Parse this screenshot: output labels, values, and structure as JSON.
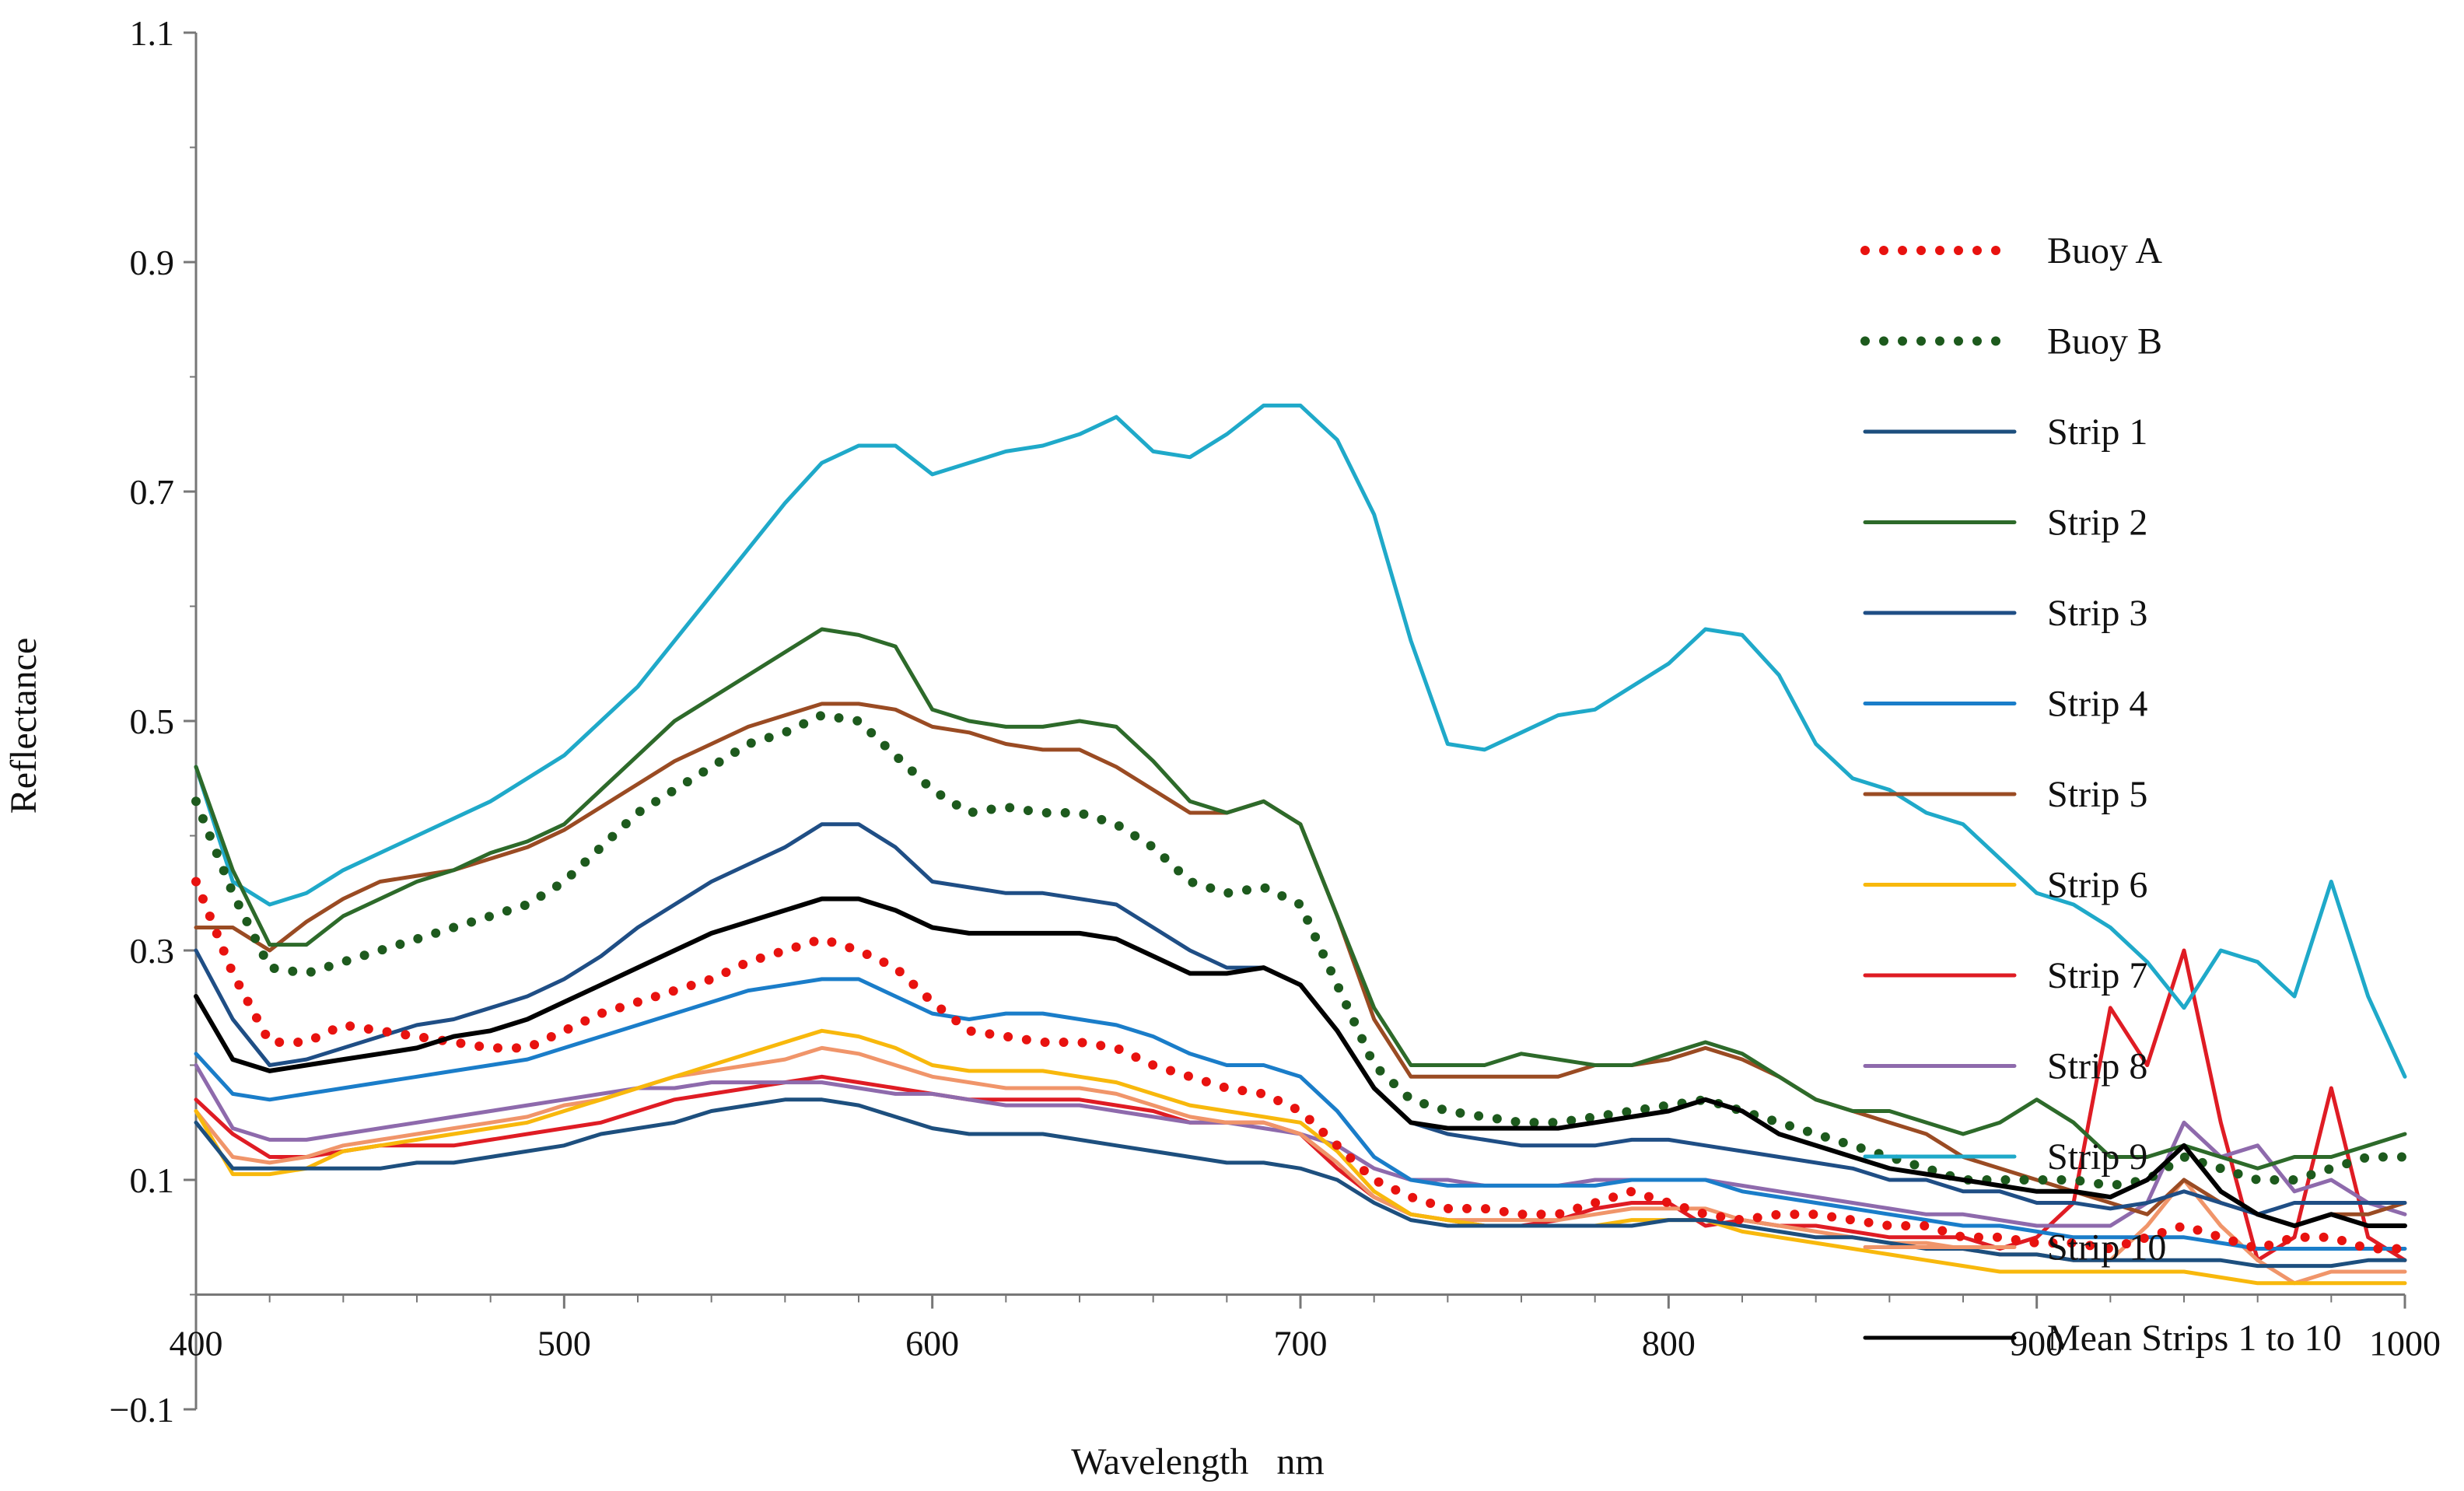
{
  "chart_data": {
    "type": "line",
    "title": "",
    "xlabel": "Wavelength   nm",
    "ylabel": "Reflectance",
    "xlim": [
      400,
      1000
    ],
    "ylim": [
      -0.1,
      1.1
    ],
    "x_axis_crosses_y": 0,
    "grid": false,
    "legend_position": "right",
    "xticks": [
      400,
      500,
      600,
      700,
      800,
      900,
      1000
    ],
    "xtick_labels": [
      "400",
      "500",
      "600",
      "700",
      "800",
      "900",
      "1000"
    ],
    "yticks": [
      -0.1,
      0.1,
      0.3,
      0.5,
      0.7,
      0.9,
      1.1
    ],
    "ytick_labels": [
      "−0.1",
      "0.1",
      "0.3",
      "0.5",
      "0.7",
      "0.9",
      "1.1"
    ],
    "x": [
      400,
      410,
      420,
      430,
      440,
      450,
      460,
      470,
      480,
      490,
      500,
      510,
      520,
      530,
      540,
      550,
      560,
      570,
      580,
      590,
      600,
      610,
      620,
      630,
      640,
      650,
      660,
      670,
      680,
      690,
      700,
      710,
      720,
      730,
      740,
      750,
      760,
      770,
      780,
      790,
      800,
      810,
      820,
      830,
      840,
      850,
      860,
      870,
      880,
      890,
      900,
      910,
      920,
      930,
      940,
      950,
      960,
      970,
      980,
      990,
      1000
    ],
    "series": [
      {
        "name": "Buoy A",
        "color": "#e8120f",
        "style": "dotted",
        "values": [
          0.36,
          0.28,
          0.22,
          0.22,
          0.235,
          0.23,
          0.225,
          0.22,
          0.215,
          0.215,
          0.23,
          0.245,
          0.255,
          0.265,
          0.275,
          0.29,
          0.3,
          0.31,
          0.3,
          0.285,
          0.255,
          0.23,
          0.225,
          0.22,
          0.22,
          0.215,
          0.2,
          0.19,
          0.18,
          0.175,
          0.16,
          0.13,
          0.1,
          0.085,
          0.075,
          0.075,
          0.07,
          0.07,
          0.08,
          0.09,
          0.08,
          0.07,
          0.065,
          0.07,
          0.07,
          0.065,
          0.06,
          0.06,
          0.05,
          0.05,
          0.045,
          0.045,
          0.04,
          0.05,
          0.06,
          0.05,
          0.04,
          0.05,
          0.05,
          0.04,
          0.04
        ]
      },
      {
        "name": "Buoy B",
        "color": "#1d5a1d",
        "style": "dotted",
        "values": [
          0.43,
          0.35,
          0.285,
          0.28,
          0.29,
          0.3,
          0.31,
          0.32,
          0.33,
          0.34,
          0.36,
          0.39,
          0.42,
          0.44,
          0.46,
          0.48,
          0.49,
          0.505,
          0.5,
          0.47,
          0.44,
          0.42,
          0.425,
          0.42,
          0.42,
          0.41,
          0.39,
          0.36,
          0.35,
          0.355,
          0.34,
          0.27,
          0.2,
          0.17,
          0.16,
          0.155,
          0.15,
          0.15,
          0.155,
          0.16,
          0.165,
          0.17,
          0.16,
          0.15,
          0.14,
          0.13,
          0.12,
          0.11,
          0.1,
          0.1,
          0.1,
          0.1,
          0.095,
          0.1,
          0.12,
          0.11,
          0.1,
          0.1,
          0.11,
          0.12,
          0.12
        ]
      },
      {
        "name": "Strip 1",
        "color": "#1d4f7e",
        "style": "solid",
        "values": [
          0.15,
          0.11,
          0.11,
          0.11,
          0.11,
          0.11,
          0.115,
          0.115,
          0.12,
          0.125,
          0.13,
          0.14,
          0.145,
          0.15,
          0.16,
          0.165,
          0.17,
          0.17,
          0.165,
          0.155,
          0.145,
          0.14,
          0.14,
          0.14,
          0.135,
          0.13,
          0.125,
          0.12,
          0.115,
          0.115,
          0.11,
          0.1,
          0.08,
          0.065,
          0.06,
          0.06,
          0.06,
          0.06,
          0.06,
          0.06,
          0.065,
          0.065,
          0.06,
          0.055,
          0.05,
          0.05,
          0.045,
          0.04,
          0.04,
          0.035,
          0.035,
          0.03,
          0.03,
          0.03,
          0.03,
          0.03,
          0.025,
          0.025,
          0.025,
          0.03,
          0.03
        ]
      },
      {
        "name": "Strip 2",
        "color": "#2d6a2a",
        "style": "solid",
        "values": [
          0.46,
          0.37,
          0.305,
          0.305,
          0.33,
          0.345,
          0.36,
          0.37,
          0.385,
          0.395,
          0.41,
          0.44,
          0.47,
          0.5,
          0.52,
          0.54,
          0.56,
          0.58,
          0.575,
          0.565,
          0.51,
          0.5,
          0.495,
          0.495,
          0.5,
          0.495,
          0.465,
          0.43,
          0.42,
          0.43,
          0.41,
          0.33,
          0.25,
          0.2,
          0.2,
          0.2,
          0.21,
          0.205,
          0.2,
          0.2,
          0.21,
          0.22,
          0.21,
          0.19,
          0.17,
          0.16,
          0.16,
          0.15,
          0.14,
          0.15,
          0.17,
          0.15,
          0.12,
          0.12,
          0.13,
          0.12,
          0.11,
          0.12,
          0.12,
          0.13,
          0.14
        ]
      },
      {
        "name": "Strip 3",
        "color": "#1f4e85",
        "style": "solid",
        "values": [
          0.3,
          0.24,
          0.2,
          0.205,
          0.215,
          0.225,
          0.235,
          0.24,
          0.25,
          0.26,
          0.275,
          0.295,
          0.32,
          0.34,
          0.36,
          0.375,
          0.39,
          0.41,
          0.41,
          0.39,
          0.36,
          0.355,
          0.35,
          0.35,
          0.345,
          0.34,
          0.32,
          0.3,
          0.285,
          0.285,
          0.27,
          0.23,
          0.18,
          0.15,
          0.14,
          0.135,
          0.13,
          0.13,
          0.13,
          0.135,
          0.135,
          0.13,
          0.125,
          0.12,
          0.115,
          0.11,
          0.1,
          0.1,
          0.09,
          0.09,
          0.08,
          0.08,
          0.075,
          0.08,
          0.09,
          0.08,
          0.07,
          0.08,
          0.08,
          0.08,
          0.08
        ]
      },
      {
        "name": "Strip 4",
        "color": "#1a7dc9",
        "style": "solid",
        "values": [
          0.21,
          0.175,
          0.17,
          0.175,
          0.18,
          0.185,
          0.19,
          0.195,
          0.2,
          0.205,
          0.215,
          0.225,
          0.235,
          0.245,
          0.255,
          0.265,
          0.27,
          0.275,
          0.275,
          0.26,
          0.245,
          0.24,
          0.245,
          0.245,
          0.24,
          0.235,
          0.225,
          0.21,
          0.2,
          0.2,
          0.19,
          0.16,
          0.12,
          0.1,
          0.095,
          0.095,
          0.095,
          0.095,
          0.095,
          0.1,
          0.1,
          0.1,
          0.09,
          0.085,
          0.08,
          0.075,
          0.07,
          0.065,
          0.06,
          0.06,
          0.055,
          0.05,
          0.05,
          0.05,
          0.05,
          0.045,
          0.04,
          0.04,
          0.04,
          0.04,
          0.04
        ]
      },
      {
        "name": "Strip 5",
        "color": "#9a4b23",
        "style": "solid",
        "values": [
          0.32,
          0.32,
          0.3,
          0.325,
          0.345,
          0.36,
          0.365,
          0.37,
          0.38,
          0.39,
          0.405,
          0.425,
          0.445,
          0.465,
          0.48,
          0.495,
          0.505,
          0.515,
          0.515,
          0.51,
          0.495,
          0.49,
          0.48,
          0.475,
          0.475,
          0.46,
          0.44,
          0.42,
          0.42,
          0.43,
          0.41,
          0.33,
          0.24,
          0.19,
          0.19,
          0.19,
          0.19,
          0.19,
          0.2,
          0.2,
          0.205,
          0.215,
          0.205,
          0.19,
          0.17,
          0.16,
          0.15,
          0.14,
          0.12,
          0.11,
          0.1,
          0.09,
          0.08,
          0.07,
          0.1,
          0.08,
          0.07,
          0.06,
          0.07,
          0.07,
          0.08
        ]
      },
      {
        "name": "Strip 6",
        "color": "#f8b80c",
        "style": "solid",
        "values": [
          0.16,
          0.105,
          0.105,
          0.11,
          0.125,
          0.13,
          0.135,
          0.14,
          0.145,
          0.15,
          0.16,
          0.17,
          0.18,
          0.19,
          0.2,
          0.21,
          0.22,
          0.23,
          0.225,
          0.215,
          0.2,
          0.195,
          0.195,
          0.195,
          0.19,
          0.185,
          0.175,
          0.165,
          0.16,
          0.155,
          0.15,
          0.125,
          0.09,
          0.07,
          0.065,
          0.06,
          0.06,
          0.06,
          0.06,
          0.065,
          0.065,
          0.065,
          0.055,
          0.05,
          0.045,
          0.04,
          0.035,
          0.03,
          0.025,
          0.02,
          0.02,
          0.02,
          0.02,
          0.02,
          0.02,
          0.015,
          0.01,
          0.01,
          0.01,
          0.01,
          0.01
        ]
      },
      {
        "name": "Strip 7",
        "color": "#df1c24",
        "style": "solid",
        "values": [
          0.17,
          0.14,
          0.12,
          0.12,
          0.125,
          0.13,
          0.13,
          0.13,
          0.135,
          0.14,
          0.145,
          0.15,
          0.16,
          0.17,
          0.175,
          0.18,
          0.185,
          0.19,
          0.185,
          0.18,
          0.175,
          0.17,
          0.17,
          0.17,
          0.17,
          0.165,
          0.16,
          0.15,
          0.15,
          0.15,
          0.14,
          0.11,
          0.085,
          0.07,
          0.065,
          0.06,
          0.06,
          0.065,
          0.075,
          0.08,
          0.08,
          0.06,
          0.065,
          0.06,
          0.06,
          0.055,
          0.05,
          0.05,
          0.05,
          0.04,
          0.05,
          0.08,
          0.25,
          0.2,
          0.3,
          0.15,
          0.03,
          0.05,
          0.18,
          0.05,
          0.03
        ]
      },
      {
        "name": "Strip 8",
        "color": "#8e6aac",
        "style": "solid",
        "values": [
          0.2,
          0.145,
          0.135,
          0.135,
          0.14,
          0.145,
          0.15,
          0.155,
          0.16,
          0.165,
          0.17,
          0.175,
          0.18,
          0.18,
          0.185,
          0.185,
          0.185,
          0.185,
          0.18,
          0.175,
          0.175,
          0.17,
          0.165,
          0.165,
          0.165,
          0.16,
          0.155,
          0.15,
          0.15,
          0.145,
          0.14,
          0.13,
          0.11,
          0.1,
          0.1,
          0.095,
          0.095,
          0.095,
          0.1,
          0.1,
          0.1,
          0.1,
          0.095,
          0.09,
          0.085,
          0.08,
          0.075,
          0.07,
          0.07,
          0.065,
          0.06,
          0.06,
          0.06,
          0.08,
          0.15,
          0.12,
          0.13,
          0.09,
          0.1,
          0.08,
          0.07
        ]
      },
      {
        "name": "Strip 9",
        "color": "#1fa9c9",
        "style": "solid",
        "values": [
          0.46,
          0.36,
          0.34,
          0.35,
          0.37,
          0.385,
          0.4,
          0.415,
          0.43,
          0.45,
          0.47,
          0.5,
          0.53,
          0.57,
          0.61,
          0.65,
          0.69,
          0.725,
          0.74,
          0.74,
          0.715,
          0.725,
          0.735,
          0.74,
          0.75,
          0.765,
          0.735,
          0.73,
          0.75,
          0.775,
          0.775,
          0.745,
          0.68,
          0.57,
          0.48,
          0.475,
          0.49,
          0.505,
          0.51,
          0.53,
          0.55,
          0.58,
          0.575,
          0.54,
          0.48,
          0.45,
          0.44,
          0.42,
          0.41,
          0.38,
          0.35,
          0.34,
          0.32,
          0.29,
          0.25,
          0.3,
          0.29,
          0.26,
          0.36,
          0.26,
          0.19
        ]
      },
      {
        "name": "Strip 10",
        "color": "#f0956a",
        "style": "solid",
        "values": [
          0.16,
          0.12,
          0.115,
          0.12,
          0.13,
          0.135,
          0.14,
          0.145,
          0.15,
          0.155,
          0.165,
          0.17,
          0.18,
          0.19,
          0.195,
          0.2,
          0.205,
          0.215,
          0.21,
          0.2,
          0.19,
          0.185,
          0.18,
          0.18,
          0.18,
          0.175,
          0.165,
          0.155,
          0.15,
          0.15,
          0.14,
          0.115,
          0.085,
          0.07,
          0.065,
          0.065,
          0.065,
          0.065,
          0.07,
          0.075,
          0.075,
          0.075,
          0.065,
          0.06,
          0.055,
          0.05,
          0.045,
          0.045,
          0.04,
          0.035,
          0.035,
          0.03,
          0.03,
          0.06,
          0.1,
          0.06,
          0.03,
          0.01,
          0.02,
          0.02,
          0.02
        ]
      },
      {
        "name": "Mean Strips 1 to 10",
        "color": "#000000",
        "style": "solid",
        "values": [
          0.26,
          0.205,
          0.195,
          0.2,
          0.205,
          0.21,
          0.215,
          0.225,
          0.23,
          0.24,
          0.255,
          0.27,
          0.285,
          0.3,
          0.315,
          0.325,
          0.335,
          0.345,
          0.345,
          0.335,
          0.32,
          0.315,
          0.315,
          0.315,
          0.315,
          0.31,
          0.295,
          0.28,
          0.28,
          0.285,
          0.27,
          0.23,
          0.18,
          0.15,
          0.145,
          0.145,
          0.145,
          0.145,
          0.15,
          0.155,
          0.16,
          0.17,
          0.16,
          0.14,
          0.13,
          0.12,
          0.11,
          0.105,
          0.1,
          0.095,
          0.09,
          0.09,
          0.085,
          0.1,
          0.13,
          0.09,
          0.07,
          0.06,
          0.07,
          0.06,
          0.06
        ]
      }
    ]
  }
}
